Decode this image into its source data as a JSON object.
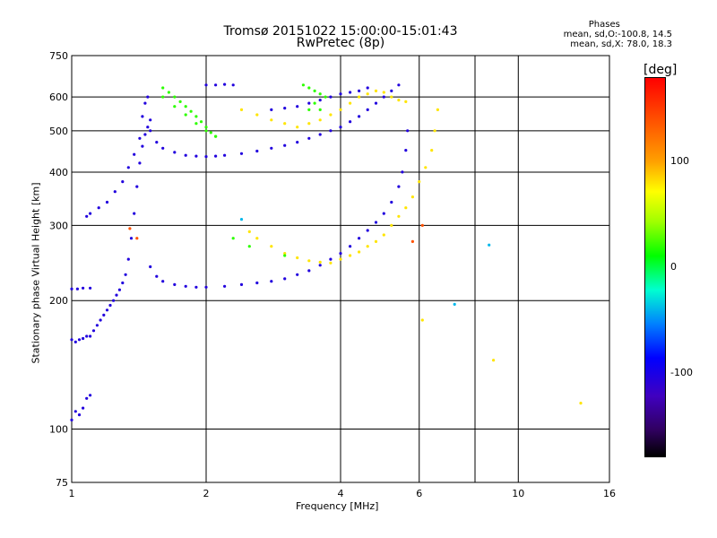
{
  "chart_data": {
    "type": "scatter",
    "title": "Tromsø 20151022 15:00:00-15:01:43",
    "subtitle": "RwPretec (8p)",
    "xlabel": "Frequency [MHz]",
    "ylabel": "Stationary phase Virtual Height [km]",
    "x_scale": "log",
    "y_scale": "log",
    "xlim": [
      1,
      16
    ],
    "ylim": [
      75,
      750
    ],
    "x_ticks": [
      1,
      2,
      4,
      6,
      10,
      16
    ],
    "x_tick_labels": [
      "1",
      "2",
      "4",
      "6",
      "10",
      "16"
    ],
    "x_grid": [
      2,
      4,
      6,
      8,
      10
    ],
    "y_ticks": [
      75,
      100,
      200,
      300,
      400,
      500,
      600,
      750
    ],
    "y_tick_labels": [
      "75",
      "100",
      "200",
      "300",
      "400",
      "500",
      "600",
      "750"
    ],
    "y_grid": [
      100,
      200,
      300,
      400,
      500,
      600
    ],
    "grid": true,
    "phase_stats": {
      "heading": "Phases",
      "o_mode": "mean, sd,O:-100.8, 14.5",
      "x_mode": "mean, sd,X:  78.0, 18.3"
    },
    "colorbar": {
      "label": "[deg]",
      "range": [
        -180,
        180
      ],
      "ticks": [
        100,
        0,
        -100
      ],
      "tick_labels": [
        "100",
        "0",
        "-100"
      ]
    },
    "series": [
      {
        "name": "",
        "phase": -105,
        "points": [
          [
            1.0,
            105
          ],
          [
            1.02,
            110
          ],
          [
            1.04,
            108
          ],
          [
            1.06,
            112
          ],
          [
            1.08,
            118
          ],
          [
            1.1,
            120
          ],
          [
            1.0,
            162
          ],
          [
            1.02,
            160
          ],
          [
            1.04,
            162
          ],
          [
            1.06,
            163
          ],
          [
            1.08,
            165
          ],
          [
            1.1,
            165
          ],
          [
            1.12,
            170
          ],
          [
            1.14,
            175
          ],
          [
            1.16,
            180
          ],
          [
            1.18,
            185
          ],
          [
            1.2,
            190
          ],
          [
            1.22,
            195
          ],
          [
            1.24,
            200
          ],
          [
            1.26,
            206
          ],
          [
            1.28,
            212
          ],
          [
            1.3,
            220
          ],
          [
            1.32,
            230
          ],
          [
            1.34,
            250
          ],
          [
            1.36,
            280
          ],
          [
            1.38,
            320
          ],
          [
            1.4,
            370
          ],
          [
            1.42,
            420
          ],
          [
            1.44,
            460
          ],
          [
            1.46,
            490
          ],
          [
            1.48,
            510
          ],
          [
            1.5,
            530
          ],
          [
            1.0,
            213
          ],
          [
            1.03,
            213
          ],
          [
            1.06,
            214
          ],
          [
            1.1,
            214
          ],
          [
            1.08,
            315
          ],
          [
            1.1,
            320
          ],
          [
            1.15,
            330
          ],
          [
            1.2,
            340
          ],
          [
            1.25,
            360
          ],
          [
            1.3,
            380
          ],
          [
            1.34,
            410
          ],
          [
            1.38,
            440
          ],
          [
            1.42,
            480
          ],
          [
            1.44,
            540
          ],
          [
            1.46,
            580
          ],
          [
            1.48,
            600
          ],
          [
            1.5,
            500
          ],
          [
            1.55,
            470
          ],
          [
            1.6,
            455
          ],
          [
            1.7,
            445
          ],
          [
            1.8,
            438
          ],
          [
            1.9,
            436
          ],
          [
            2.0,
            435
          ],
          [
            2.1,
            436
          ],
          [
            2.2,
            438
          ],
          [
            2.4,
            442
          ],
          [
            2.6,
            448
          ],
          [
            2.8,
            455
          ],
          [
            3.0,
            462
          ],
          [
            3.2,
            470
          ],
          [
            3.4,
            480
          ],
          [
            3.6,
            490
          ],
          [
            3.8,
            500
          ],
          [
            4.0,
            510
          ],
          [
            4.2,
            525
          ],
          [
            4.4,
            540
          ],
          [
            4.6,
            560
          ],
          [
            4.8,
            580
          ],
          [
            5.0,
            600
          ],
          [
            5.2,
            620
          ],
          [
            5.4,
            640
          ],
          [
            1.5,
            240
          ],
          [
            1.55,
            228
          ],
          [
            1.6,
            222
          ],
          [
            1.7,
            218
          ],
          [
            1.8,
            216
          ],
          [
            1.9,
            215
          ],
          [
            2.0,
            215
          ],
          [
            2.2,
            216
          ],
          [
            2.4,
            218
          ],
          [
            2.6,
            220
          ],
          [
            2.8,
            222
          ],
          [
            3.0,
            225
          ],
          [
            3.2,
            230
          ],
          [
            3.4,
            235
          ],
          [
            3.6,
            242
          ],
          [
            3.8,
            250
          ],
          [
            4.0,
            258
          ],
          [
            4.2,
            268
          ],
          [
            4.4,
            280
          ],
          [
            4.6,
            292
          ],
          [
            4.8,
            305
          ],
          [
            5.0,
            320
          ],
          [
            5.2,
            340
          ],
          [
            5.4,
            370
          ],
          [
            5.5,
            400
          ],
          [
            5.6,
            450
          ],
          [
            5.65,
            500
          ],
          [
            2.0,
            640
          ],
          [
            2.1,
            640
          ],
          [
            2.2,
            642
          ],
          [
            2.3,
            640
          ],
          [
            2.8,
            560
          ],
          [
            3.0,
            565
          ],
          [
            3.2,
            570
          ],
          [
            3.4,
            580
          ],
          [
            3.6,
            590
          ],
          [
            3.8,
            600
          ],
          [
            4.0,
            610
          ],
          [
            4.2,
            615
          ],
          [
            4.4,
            620
          ],
          [
            4.6,
            630
          ]
        ]
      },
      {
        "name": "",
        "phase": 80,
        "points": [
          [
            4.0,
            250
          ],
          [
            4.2,
            255
          ],
          [
            4.4,
            260
          ],
          [
            4.6,
            268
          ],
          [
            4.8,
            275
          ],
          [
            5.0,
            285
          ],
          [
            5.2,
            300
          ],
          [
            5.4,
            315
          ],
          [
            5.6,
            330
          ],
          [
            5.8,
            350
          ],
          [
            6.0,
            380
          ],
          [
            6.2,
            410
          ],
          [
            6.4,
            450
          ],
          [
            6.5,
            500
          ],
          [
            6.6,
            560
          ],
          [
            2.5,
            290
          ],
          [
            2.6,
            280
          ],
          [
            2.8,
            268
          ],
          [
            3.0,
            258
          ],
          [
            3.2,
            252
          ],
          [
            3.4,
            248
          ],
          [
            3.6,
            246
          ],
          [
            3.8,
            245
          ],
          [
            2.4,
            560
          ],
          [
            2.6,
            545
          ],
          [
            2.8,
            530
          ],
          [
            3.0,
            520
          ],
          [
            3.2,
            510
          ],
          [
            3.4,
            520
          ],
          [
            3.6,
            530
          ],
          [
            3.8,
            545
          ],
          [
            4.0,
            560
          ],
          [
            4.2,
            580
          ],
          [
            4.4,
            600
          ],
          [
            4.6,
            610
          ],
          [
            4.8,
            620
          ],
          [
            5.0,
            615
          ],
          [
            5.2,
            600
          ],
          [
            5.4,
            590
          ],
          [
            5.6,
            585
          ],
          [
            8.8,
            145
          ],
          [
            13.8,
            115
          ],
          [
            6.1,
            180
          ]
        ]
      },
      {
        "name": "",
        "phase": 20,
        "points": [
          [
            1.6,
            630
          ],
          [
            1.65,
            615
          ],
          [
            1.7,
            600
          ],
          [
            1.75,
            585
          ],
          [
            1.8,
            570
          ],
          [
            1.85,
            555
          ],
          [
            1.9,
            540
          ],
          [
            1.95,
            525
          ],
          [
            2.0,
            510
          ],
          [
            2.05,
            495
          ],
          [
            2.1,
            485
          ],
          [
            1.6,
            600
          ],
          [
            1.7,
            570
          ],
          [
            1.8,
            545
          ],
          [
            1.9,
            520
          ],
          [
            2.0,
            500
          ],
          [
            2.1,
            485
          ],
          [
            3.3,
            640
          ],
          [
            3.4,
            630
          ],
          [
            3.5,
            620
          ],
          [
            3.6,
            610
          ],
          [
            3.7,
            600
          ],
          [
            3.5,
            580
          ],
          [
            3.6,
            560
          ],
          [
            3.4,
            560
          ],
          [
            2.3,
            280
          ],
          [
            2.5,
            268
          ],
          [
            3.0,
            255
          ]
        ]
      },
      {
        "name": "",
        "phase": -40,
        "points": [
          [
            2.4,
            310
          ],
          [
            8.6,
            270
          ],
          [
            7.2,
            196
          ]
        ]
      },
      {
        "name": "",
        "phase": 140,
        "points": [
          [
            5.8,
            275
          ],
          [
            6.1,
            300
          ],
          [
            1.35,
            295
          ],
          [
            1.4,
            280
          ]
        ]
      }
    ]
  }
}
